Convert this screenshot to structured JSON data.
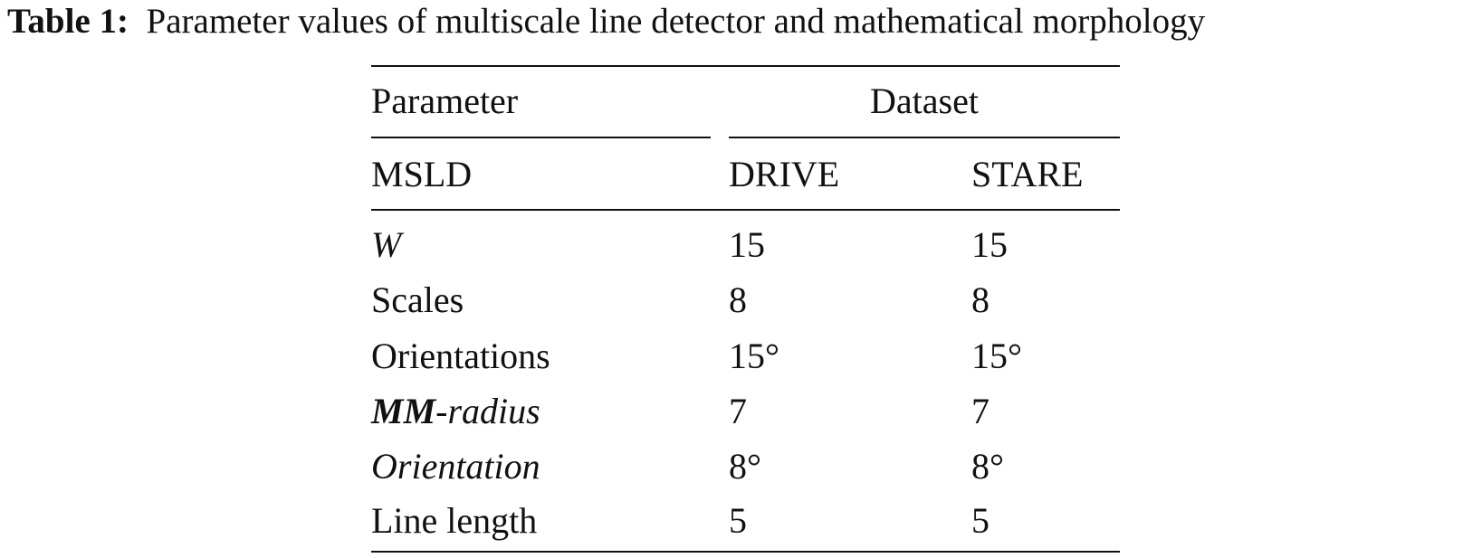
{
  "caption": {
    "label": "Table 1:",
    "text": "Parameter values of multiscale line detector and mathematical morphology"
  },
  "table": {
    "header": [
      "Parameter",
      "Dataset"
    ],
    "subheader": [
      "MSLD",
      "DRIVE",
      "STARE"
    ],
    "rows": [
      [
        {
          "italic": "W"
        },
        "15",
        "15"
      ],
      [
        "Scales",
        "8",
        "8"
      ],
      [
        "Orientations",
        "15°",
        "15°"
      ],
      [
        {
          "bold_italic": "MM",
          "italic": "-radius"
        },
        "7",
        "7"
      ],
      [
        {
          "italic": "Orientation"
        },
        "8°",
        "8°"
      ],
      [
        "Line length",
        "5",
        "5"
      ]
    ]
  }
}
